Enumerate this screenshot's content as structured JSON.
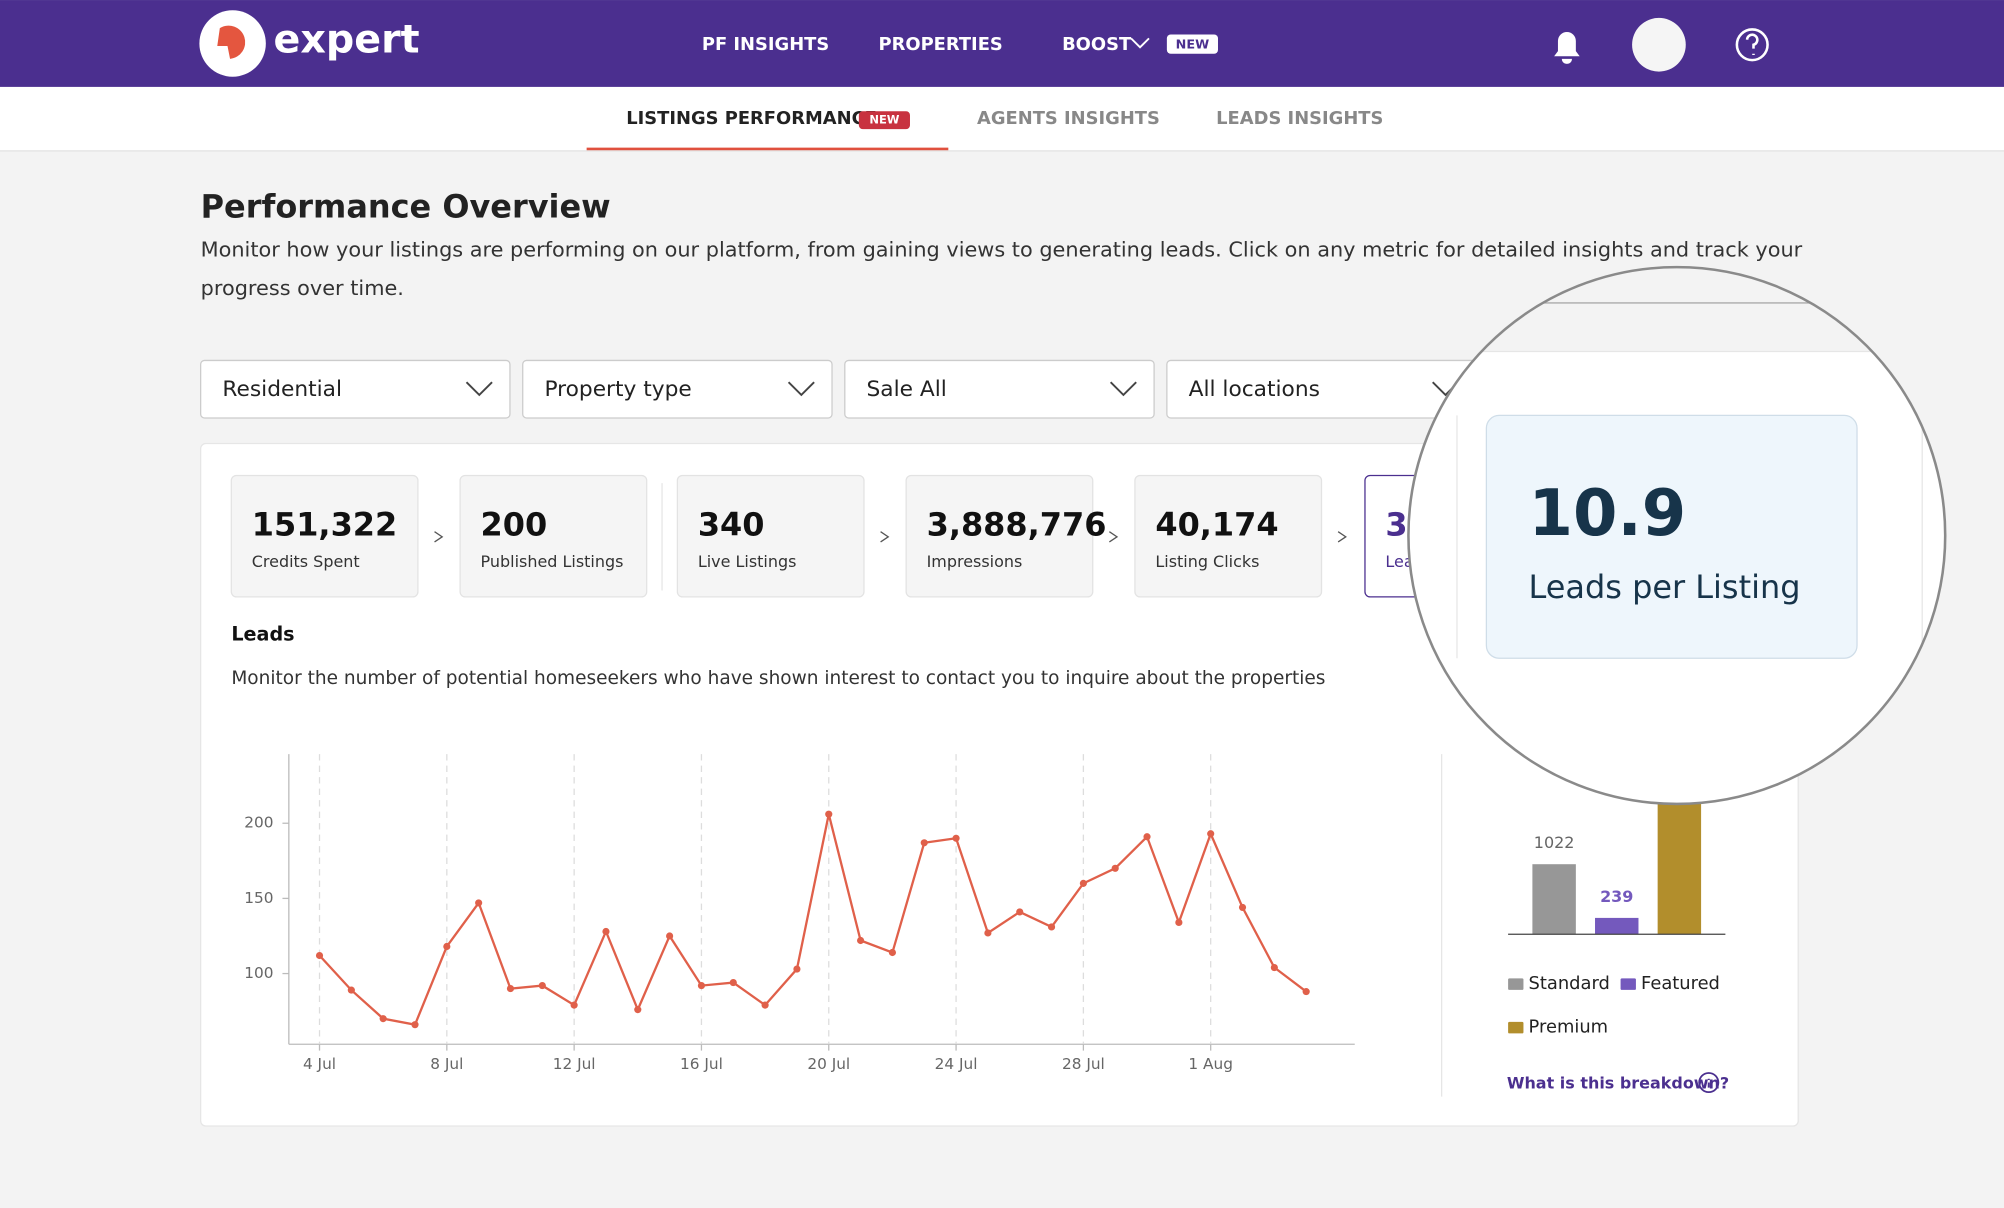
{
  "nav": {
    "logo": "expert",
    "items": [
      "PF INSIGHTS",
      "PROPERTIES",
      "BOOST"
    ],
    "badge": "NEW"
  },
  "tabs": {
    "items": [
      "LISTINGS PERFORMANCE",
      "AGENTS INSIGHTS",
      "LEADS INSIGHTS"
    ],
    "badge": "NEW"
  },
  "header": {
    "title": "Performance Overview",
    "description": [
      "Monitor how your listings are performing on our platform, from gaining views to generating leads. Click on any metric for detailed insights and track your",
      "progress over time."
    ]
  },
  "filters": [
    "Residential",
    "Property type",
    "Sale All",
    "All locations"
  ],
  "metrics": [
    {
      "value": "151,322",
      "label": "Credits Spent"
    },
    {
      "value": "200",
      "label": "Published Listings"
    },
    {
      "value": "340",
      "label": "Live Listings"
    },
    {
      "value": "3,888,776",
      "label": "Impressions"
    },
    {
      "value": "40,174",
      "label": "Listing Clicks"
    },
    {
      "value": "3,",
      "label": "Leads"
    }
  ],
  "section": {
    "title": "Leads",
    "description": "Monitor the number of potential homeseekers who have shown interest to contact you to inquire about the properties"
  },
  "chart_data": [
    {
      "type": "line",
      "color": "#e0604a",
      "categories": [
        "4 Jul",
        null,
        null,
        null,
        "8 Jul",
        null,
        null,
        null,
        "12 Jul",
        null,
        null,
        null,
        "16 Jul",
        null,
        null,
        null,
        "20 Jul",
        null,
        null,
        null,
        "24 Jul",
        null,
        null,
        null,
        "28 Jul",
        null,
        null,
        null,
        "1 Aug",
        null,
        null,
        null
      ],
      "values": [
        112,
        89,
        70,
        66,
        118,
        147,
        90,
        92,
        79,
        128,
        76,
        125,
        92,
        94,
        79,
        103,
        206,
        122,
        114,
        187,
        190,
        127,
        141,
        131,
        160,
        170,
        191,
        134,
        193,
        144,
        104,
        88
      ],
      "ylim": [
        53,
        246
      ],
      "yticks": [
        100,
        150,
        200
      ],
      "grid": "x"
    },
    {
      "type": "bar",
      "categories": [
        "Standard",
        "Featured",
        "Premium"
      ],
      "values": [
        1022,
        239,
        2000
      ],
      "colors": [
        "#979797",
        "#7459bd",
        "#b28e2c"
      ],
      "ylim": [
        0,
        3000
      ]
    }
  ],
  "link": "What is this breakdown?",
  "zoom": {
    "value": "10.9",
    "label": "Leads per Listing"
  }
}
